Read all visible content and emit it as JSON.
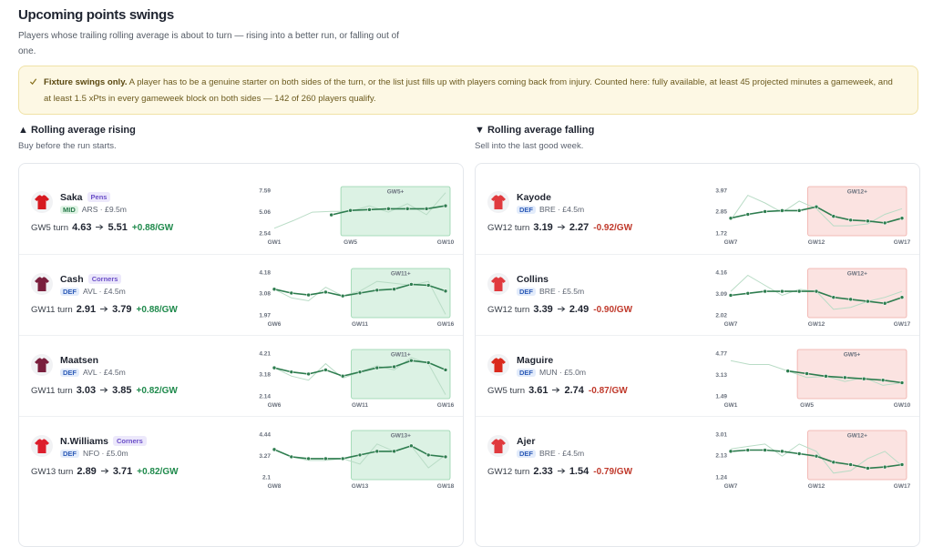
{
  "header": {
    "title": "Upcoming points swings",
    "subtitle": "Players whose trailing rolling average is about to turn — rising into a better run, or falling out of one."
  },
  "notice": {
    "title": "Fixture swings only.",
    "text": "A player has to be a genuine starter on both sides of the turn, or the list just fills up with players coming back from injury. Counted here: fully available, at least 45 projected minutes a gameweek, and at least 1.5 xPts in every gameweek block on both sides — 142 of 260 players qualify."
  },
  "columns": [
    {
      "title": "▲ Rolling average rising",
      "subtitle": "Buy before the run starts.",
      "zone_fill": "#dcf2e4",
      "zone_stroke": "#93d3aa",
      "zone_text": "#2f7d4c",
      "delta_color": "#1f8a4c",
      "line_color": "#2e7d4f",
      "weekly_color": "#b9dcc6",
      "players": [
        {
          "name": "Saka",
          "tag": "Pens",
          "position": "MID",
          "meta": "ARS · £9.5m",
          "turn": "GW5 turn",
          "before": 4.63,
          "after": 5.51,
          "delta": "+0.88/GW",
          "kit": "#d71920",
          "chart": {
            "x": [
              "GW1",
              null,
              null,
              null,
              "GW5",
              null,
              null,
              null,
              null,
              "GW10"
            ],
            "ylim": [
              2.54,
              7.59
            ],
            "yticks": [
              2.54,
              5.06,
              7.59
            ],
            "zone": "GW5+",
            "weekly": [
              3.1,
              4.0,
              5.0,
              5.1,
              5.1,
              5.75,
              5.0,
              6.0,
              4.7,
              7.3
            ],
            "rolling": [
              null,
              null,
              null,
              4.68,
              5.2,
              5.3,
              5.4,
              5.4,
              5.4,
              5.75
            ]
          }
        },
        {
          "name": "Cash",
          "tag": "Corners",
          "position": "DEF",
          "meta": "AVL · £4.5m",
          "turn": "GW11 turn",
          "before": 2.91,
          "after": 3.79,
          "delta": "+0.88/GW",
          "kit": "#7a1f3d",
          "chart": {
            "x": [
              "GW6",
              null,
              null,
              null,
              null,
              "GW11",
              null,
              null,
              null,
              null,
              "GW16"
            ],
            "ylim": [
              1.97,
              4.18
            ],
            "yticks": [
              1.97,
              3.08,
              4.18
            ],
            "zone": "GW11+",
            "weekly": [
              3.3,
              2.85,
              2.7,
              3.4,
              2.95,
              3.2,
              3.7,
              3.6,
              3.5,
              3.7,
              2.0
            ],
            "rolling": [
              3.3,
              3.1,
              3.0,
              3.15,
              2.95,
              3.1,
              3.25,
              3.3,
              3.55,
              3.5,
              3.2
            ]
          }
        },
        {
          "name": "Maatsen",
          "tag": null,
          "position": "DEF",
          "meta": "AVL · £4.5m",
          "turn": "GW11 turn",
          "before": 3.03,
          "after": 3.85,
          "delta": "+0.82/GW",
          "kit": "#7a1f3d",
          "chart": {
            "x": [
              "GW6",
              null,
              null,
              null,
              null,
              "GW11",
              null,
              null,
              null,
              null,
              "GW16"
            ],
            "ylim": [
              2.14,
              4.21
            ],
            "yticks": [
              2.14,
              3.18,
              4.21
            ],
            "zone": "GW11+",
            "weekly": [
              3.5,
              3.1,
              2.9,
              3.7,
              3.0,
              3.3,
              3.6,
              3.4,
              4.0,
              3.7,
              2.2
            ],
            "rolling": [
              3.5,
              3.3,
              3.2,
              3.4,
              3.1,
              3.3,
              3.5,
              3.55,
              3.85,
              3.75,
              3.4
            ]
          }
        },
        {
          "name": "N.Williams",
          "tag": "Corners",
          "position": "DEF",
          "meta": "NFO · £5.0m",
          "turn": "GW13 turn",
          "before": 2.89,
          "after": 3.71,
          "delta": "+0.82/GW",
          "kit": "#dd1f2d",
          "chart": {
            "x": [
              "GW8",
              null,
              null,
              null,
              null,
              "GW13",
              null,
              null,
              null,
              null,
              "GW18"
            ],
            "ylim": [
              2.1,
              4.44
            ],
            "yticks": [
              2.1,
              3.27,
              4.44
            ],
            "zone": "GW13+",
            "weekly": [
              3.6,
              3.2,
              3.0,
              3.0,
              3.1,
              2.8,
              3.9,
              3.5,
              3.8,
              2.6,
              3.3
            ],
            "rolling": [
              3.6,
              3.2,
              3.1,
              3.1,
              3.1,
              3.3,
              3.5,
              3.5,
              3.8,
              3.3,
              3.2
            ]
          }
        }
      ]
    },
    {
      "title": "▼ Rolling average falling",
      "subtitle": "Sell into the last good week.",
      "zone_fill": "#fbe3e1",
      "zone_stroke": "#efaaa5",
      "zone_text": "#c0392b",
      "delta_color": "#c0392b",
      "line_color": "#2e7d4f",
      "weekly_color": "#b9dcc6",
      "players": [
        {
          "name": "Kayode",
          "tag": null,
          "position": "DEF",
          "meta": "BRE · £4.5m",
          "turn": "GW12 turn",
          "before": 3.19,
          "after": 2.27,
          "delta": "-0.92/GW",
          "kit": "#e03a3e",
          "chart": {
            "x": [
              "GW7",
              null,
              null,
              null,
              null,
              "GW12",
              null,
              null,
              null,
              null,
              "GW17"
            ],
            "ylim": [
              1.72,
              3.97
            ],
            "yticks": [
              1.72,
              2.85,
              3.97
            ],
            "zone": "GW12+",
            "weekly": [
              2.4,
              3.7,
              3.3,
              2.8,
              3.4,
              3.0,
              2.1,
              2.1,
              2.2,
              2.7,
              3.0
            ],
            "rolling": [
              2.5,
              2.7,
              2.85,
              2.9,
              2.9,
              3.1,
              2.6,
              2.4,
              2.35,
              2.25,
              2.5
            ]
          }
        },
        {
          "name": "Collins",
          "tag": null,
          "position": "DEF",
          "meta": "BRE · £5.5m",
          "turn": "GW12 turn",
          "before": 3.39,
          "after": 2.49,
          "delta": "-0.90/GW",
          "kit": "#e03a3e",
          "chart": {
            "x": [
              "GW7",
              null,
              null,
              null,
              null,
              "GW12",
              null,
              null,
              null,
              null,
              "GW17"
            ],
            "ylim": [
              2.02,
              4.16
            ],
            "yticks": [
              2.02,
              3.09,
              4.16
            ],
            "zone": "GW12+",
            "weekly": [
              3.2,
              4.0,
              3.5,
              3.0,
              3.3,
              3.2,
              2.3,
              2.4,
              2.7,
              2.9,
              3.2
            ],
            "rolling": [
              3.0,
              3.1,
              3.2,
              3.2,
              3.2,
              3.2,
              2.9,
              2.8,
              2.7,
              2.6,
              2.9
            ]
          }
        },
        {
          "name": "Maguire",
          "tag": null,
          "position": "DEF",
          "meta": "MUN · £5.0m",
          "turn": "GW5 turn",
          "before": 3.61,
          "after": 2.74,
          "delta": "-0.87/GW",
          "kit": "#da291c",
          "chart": {
            "x": [
              "GW1",
              null,
              null,
              null,
              "GW5",
              null,
              null,
              null,
              null,
              "GW10"
            ],
            "ylim": [
              1.49,
              4.77
            ],
            "yticks": [
              1.49,
              3.13,
              4.77
            ],
            "zone": "GW5+",
            "weekly": [
              4.2,
              3.9,
              3.9,
              3.4,
              2.9,
              3.0,
              2.6,
              2.9,
              2.3,
              2.5
            ],
            "rolling": [
              null,
              null,
              null,
              3.4,
              3.2,
              3.0,
              2.9,
              2.8,
              2.7,
              2.5
            ]
          }
        },
        {
          "name": "Ajer",
          "tag": null,
          "position": "DEF",
          "meta": "BRE · £4.5m",
          "turn": "GW12 turn",
          "before": 2.33,
          "after": 1.54,
          "delta": "-0.79/GW",
          "kit": "#e03a3e",
          "chart": {
            "x": [
              "GW7",
              null,
              null,
              null,
              null,
              "GW12",
              null,
              null,
              null,
              null,
              "GW17"
            ],
            "ylim": [
              1.24,
              3.01
            ],
            "yticks": [
              1.24,
              2.13,
              3.01
            ],
            "zone": "GW12+",
            "weekly": [
              2.4,
              2.5,
              2.6,
              2.1,
              2.6,
              2.3,
              1.4,
              1.5,
              2.0,
              2.3,
              1.7
            ],
            "rolling": [
              2.3,
              2.35,
              2.35,
              2.3,
              2.2,
              2.1,
              1.85,
              1.75,
              1.6,
              1.65,
              1.75
            ]
          }
        }
      ]
    }
  ]
}
